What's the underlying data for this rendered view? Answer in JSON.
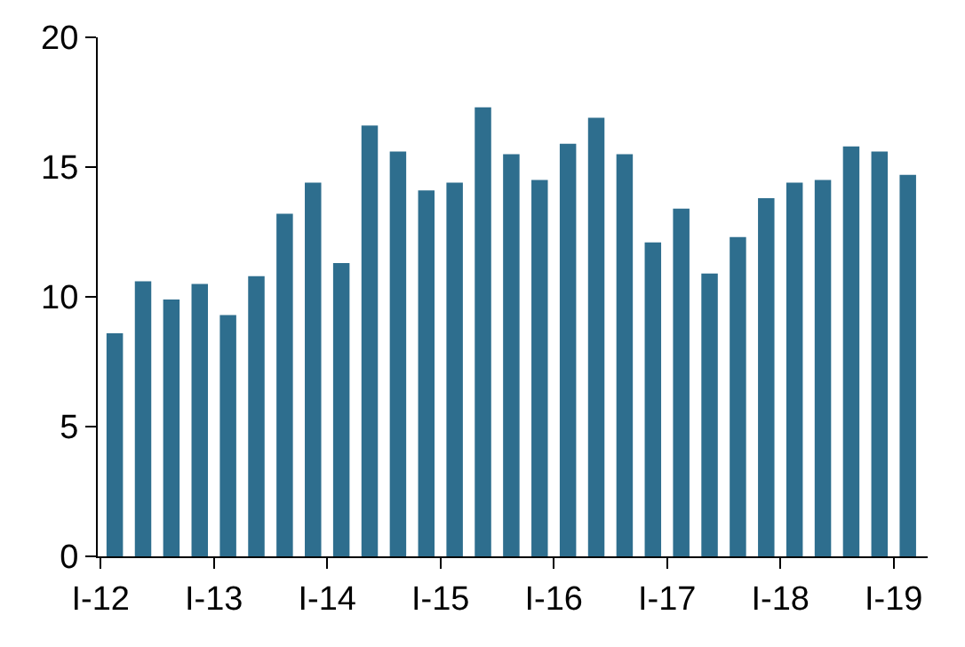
{
  "chart_data": {
    "type": "bar",
    "categories": [
      "I-12",
      null,
      null,
      null,
      "I-13",
      null,
      null,
      null,
      "I-14",
      null,
      null,
      null,
      "I-15",
      null,
      null,
      null,
      "I-16",
      null,
      null,
      null,
      "I-17",
      null,
      null,
      null,
      "I-18",
      null,
      null,
      null,
      "I-19"
    ],
    "values": [
      8.6,
      10.6,
      9.9,
      10.5,
      9.3,
      10.8,
      13.2,
      14.4,
      11.3,
      16.6,
      15.6,
      14.1,
      14.4,
      17.3,
      15.5,
      14.5,
      15.9,
      16.9,
      15.5,
      12.1,
      13.4,
      10.9,
      12.3,
      13.8,
      14.4,
      14.5,
      15.8,
      15.6,
      14.7
    ],
    "color": "#2e6e8e",
    "ylim": [
      0,
      20
    ],
    "yticks": [
      0,
      5,
      10,
      15,
      20
    ]
  }
}
